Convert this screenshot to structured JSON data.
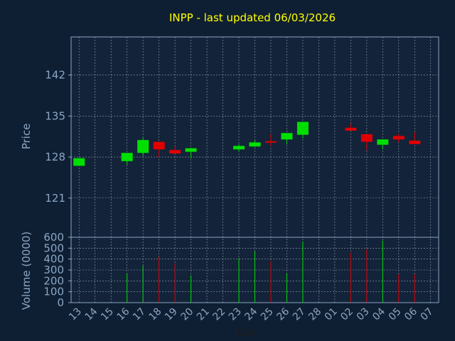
{
  "chart_data": {
    "type": "candlestick",
    "title": "INPP - last updated 06/03/2026",
    "xlabel": "Day",
    "colors": {
      "background": "#0f1f33",
      "panel": "#13233a",
      "title": "#ffff00",
      "axis_text": "#8aa6c4",
      "axis_line": "#8aa6c4",
      "grid": "#c0c8d0",
      "up": "#00e000",
      "down": "#e00000"
    },
    "x": [
      "13",
      "14",
      "15",
      "16",
      "17",
      "18",
      "19",
      "20",
      "21",
      "22",
      "23",
      "24",
      "25",
      "26",
      "27",
      "28",
      "01",
      "02",
      "03",
      "04",
      "05",
      "06",
      "07"
    ],
    "price_panel": {
      "ylabel": "Price",
      "ylim": [
        114.3,
        148.5
      ],
      "yticks": [
        121,
        128,
        135,
        142
      ],
      "grid": true
    },
    "volume_panel": {
      "ylabel": "Volume (0000)",
      "ylim": [
        0,
        600
      ],
      "yticks": [
        0,
        100,
        200,
        300,
        400,
        500,
        600
      ],
      "grid": true
    },
    "candles": [
      {
        "day": "13",
        "open": 126.5,
        "close": 127.8,
        "high": 127.8,
        "low": 126.5,
        "volume": 0
      },
      {
        "day": "16",
        "open": 127.3,
        "close": 128.7,
        "high": 128.7,
        "low": 126.7,
        "volume": 270
      },
      {
        "day": "17",
        "open": 128.7,
        "close": 130.9,
        "high": 131.3,
        "low": 128.2,
        "volume": 340
      },
      {
        "day": "18",
        "open": 130.6,
        "close": 129.3,
        "high": 130.6,
        "low": 127.9,
        "volume": 420
      },
      {
        "day": "19",
        "open": 129.2,
        "close": 128.6,
        "high": 129.8,
        "low": 128.6,
        "volume": 360
      },
      {
        "day": "20",
        "open": 128.9,
        "close": 129.5,
        "high": 129.5,
        "low": 127.8,
        "volume": 250
      },
      {
        "day": "23",
        "open": 129.3,
        "close": 129.9,
        "high": 130.2,
        "low": 128.9,
        "volume": 410
      },
      {
        "day": "24",
        "open": 129.8,
        "close": 130.5,
        "high": 130.9,
        "low": 129.7,
        "volume": 470
      },
      {
        "day": "25",
        "open": 130.7,
        "close": 130.5,
        "high": 131.9,
        "low": 129.9,
        "volume": 380
      },
      {
        "day": "26",
        "open": 131.0,
        "close": 132.1,
        "high": 132.1,
        "low": 130.2,
        "volume": 270
      },
      {
        "day": "27",
        "open": 131.8,
        "close": 134.0,
        "high": 134.0,
        "low": 131.2,
        "volume": 560
      },
      {
        "day": "02",
        "open": 133.0,
        "close": 132.5,
        "high": 133.7,
        "low": 132.5,
        "volume": 460
      },
      {
        "day": "03",
        "open": 131.9,
        "close": 130.6,
        "high": 131.9,
        "low": 129.1,
        "volume": 490
      },
      {
        "day": "04",
        "open": 130.1,
        "close": 131.0,
        "high": 131.0,
        "low": 129.3,
        "volume": 570
      },
      {
        "day": "05",
        "open": 131.6,
        "close": 131.0,
        "high": 132.0,
        "low": 130.5,
        "volume": 260
      },
      {
        "day": "06",
        "open": 130.8,
        "close": 130.2,
        "high": 132.2,
        "low": 130.2,
        "volume": 260
      }
    ]
  }
}
